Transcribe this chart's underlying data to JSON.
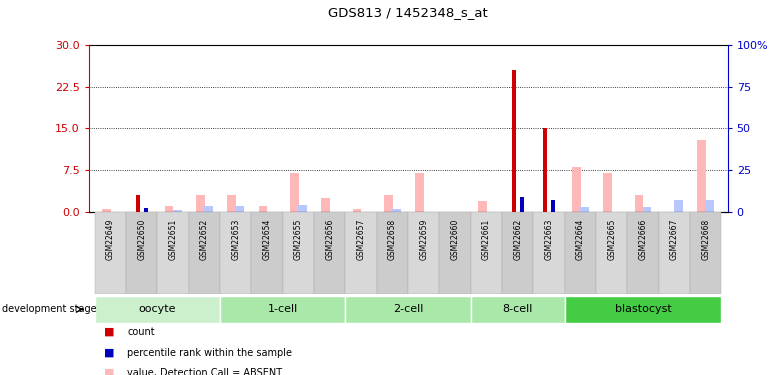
{
  "title": "GDS813 / 1452348_s_at",
  "samples": [
    "GSM22649",
    "GSM22650",
    "GSM22651",
    "GSM22652",
    "GSM22653",
    "GSM22654",
    "GSM22655",
    "GSM22656",
    "GSM22657",
    "GSM22658",
    "GSM22659",
    "GSM22660",
    "GSM22661",
    "GSM22662",
    "GSM22663",
    "GSM22664",
    "GSM22665",
    "GSM22666",
    "GSM22667",
    "GSM22668"
  ],
  "count_values": [
    0,
    3.0,
    0,
    0,
    0,
    0,
    0,
    0,
    0,
    0,
    0,
    0,
    0,
    25.5,
    15.0,
    0,
    0,
    0,
    0,
    0
  ],
  "rank_values": [
    0,
    2.5,
    0,
    0,
    0,
    0,
    0,
    0,
    0,
    0,
    0,
    0,
    0,
    9.0,
    7.0,
    0,
    0,
    0,
    0,
    0
  ],
  "value_absent": [
    0.5,
    0,
    1.0,
    3.0,
    3.0,
    1.0,
    7.0,
    2.5,
    0.5,
    3.0,
    7.0,
    0,
    2.0,
    0,
    0,
    8.0,
    7.0,
    3.0,
    0,
    13.0
  ],
  "rank_absent": [
    0,
    0,
    1.0,
    3.5,
    3.5,
    0,
    4.0,
    0,
    0,
    2.0,
    0,
    0.2,
    0,
    0,
    0,
    3.0,
    0,
    3.0,
    7.0,
    7.0
  ],
  "ylim_left": [
    0,
    30
  ],
  "ylim_right": [
    0,
    100
  ],
  "yticks_left": [
    0,
    7.5,
    15,
    22.5,
    30
  ],
  "yticks_right": [
    0,
    25,
    50,
    75,
    100
  ],
  "left_color": "#cc0000",
  "right_color": "#0000cc",
  "bar_width": 0.25,
  "group_defs": [
    {
      "label": "oocyte",
      "start": 0,
      "end": 4,
      "color": "#ccf0cc"
    },
    {
      "label": "1-cell",
      "start": 4,
      "end": 8,
      "color": "#aae8aa"
    },
    {
      "label": "2-cell",
      "start": 8,
      "end": 12,
      "color": "#aae8aa"
    },
    {
      "label": "8-cell",
      "start": 12,
      "end": 15,
      "color": "#aae8aa"
    },
    {
      "label": "blastocyst",
      "start": 15,
      "end": 20,
      "color": "#44cc44"
    }
  ],
  "pink_color": "#ffb8b8",
  "lblue_color": "#b8c8ff",
  "red_color": "#cc0000",
  "dblue_color": "#0000bb",
  "gray_bg": "#d8d8d8"
}
